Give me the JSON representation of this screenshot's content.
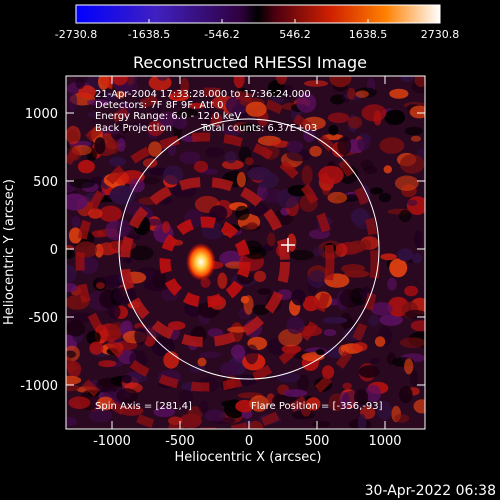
{
  "colorbar": {
    "ticks": [
      "-2730.8",
      "-1638.5",
      "-546.2",
      "546.2",
      "1638.5",
      "2730.8"
    ]
  },
  "plot": {
    "title": "Reconstructed RHESSI Image",
    "xlabel": "Heliocentric X (arcsec)",
    "ylabel": "Heliocentric Y (arcsec)",
    "xticks": [
      "-1000",
      "-500",
      "0",
      "500",
      "1000"
    ],
    "yticks": [
      "1000",
      "500",
      "0",
      "-500",
      "-1000"
    ],
    "annotations": {
      "time": "21-Apr-2004 17:33:28.000 to 17:36:24.000",
      "detectors": "Detectors: 7F 8F 9F, Att 0",
      "energy": "Energy Range: 6.0 - 12.0 keV",
      "method": "Back Projection",
      "counts": "Total counts: 6.37E+03",
      "spin_axis": "Spin Axis = [281,4]",
      "flare_position": "Flare Position = [-356,-93]"
    }
  },
  "footer": {
    "timestamp": "30-Apr-2022 06:38"
  },
  "colors": {
    "background": "#000000",
    "foreground": "#ffffff"
  }
}
